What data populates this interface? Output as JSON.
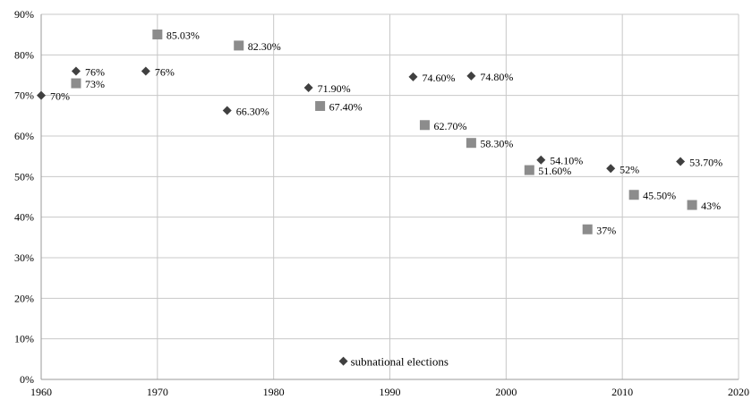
{
  "chart_data": {
    "type": "scatter",
    "xlim": [
      1960,
      2020
    ],
    "ylim": [
      0,
      90
    ],
    "x_ticks": [
      "1960",
      "1970",
      "1980",
      "1990",
      "2000",
      "2010",
      "2020"
    ],
    "y_ticks": [
      "0%",
      "10%",
      "20%",
      "30%",
      "40%",
      "50%",
      "60%",
      "70%",
      "80%",
      "90%"
    ],
    "grid": true,
    "legend_placement": "bottom-center",
    "series": [
      {
        "name": "subnational elections",
        "marker": "diamond",
        "color": "#404040",
        "points": [
          {
            "x": 1960,
            "y": 70,
            "label": "70%"
          },
          {
            "x": 1963,
            "y": 76,
            "label": "76%"
          },
          {
            "x": 1969,
            "y": 76,
            "label": "76%"
          },
          {
            "x": 1976,
            "y": 66.3,
            "label": "66.30%"
          },
          {
            "x": 1983,
            "y": 71.9,
            "label": "71.90%"
          },
          {
            "x": 1992,
            "y": 74.6,
            "label": "74.60%"
          },
          {
            "x": 1997,
            "y": 74.8,
            "label": "74.80%"
          },
          {
            "x": 2003,
            "y": 54.1,
            "label": "54.10%"
          },
          {
            "x": 2009,
            "y": 52,
            "label": "52%"
          },
          {
            "x": 2015,
            "y": 53.7,
            "label": "53.70%"
          }
        ]
      },
      {
        "marker": "square",
        "color": "#8c8c8c",
        "points": [
          {
            "x": 1963,
            "y": 73,
            "label": "73%"
          },
          {
            "x": 1970,
            "y": 85.03,
            "label": "85.03%"
          },
          {
            "x": 1977,
            "y": 82.3,
            "label": "82.30%"
          },
          {
            "x": 1984,
            "y": 67.4,
            "label": "67.40%"
          },
          {
            "x": 1993,
            "y": 62.7,
            "label": "62.70%"
          },
          {
            "x": 1997,
            "y": 58.3,
            "label": "58.30%"
          },
          {
            "x": 2002,
            "y": 51.6,
            "label": "51.60%"
          },
          {
            "x": 2007,
            "y": 37,
            "label": "37%"
          },
          {
            "x": 2011,
            "y": 45.5,
            "label": "45.50%"
          },
          {
            "x": 2016,
            "y": 43,
            "label": "43%"
          }
        ]
      }
    ],
    "legend": [
      {
        "label": "subnational elections",
        "marker": "diamond",
        "color": "#404040"
      }
    ]
  }
}
